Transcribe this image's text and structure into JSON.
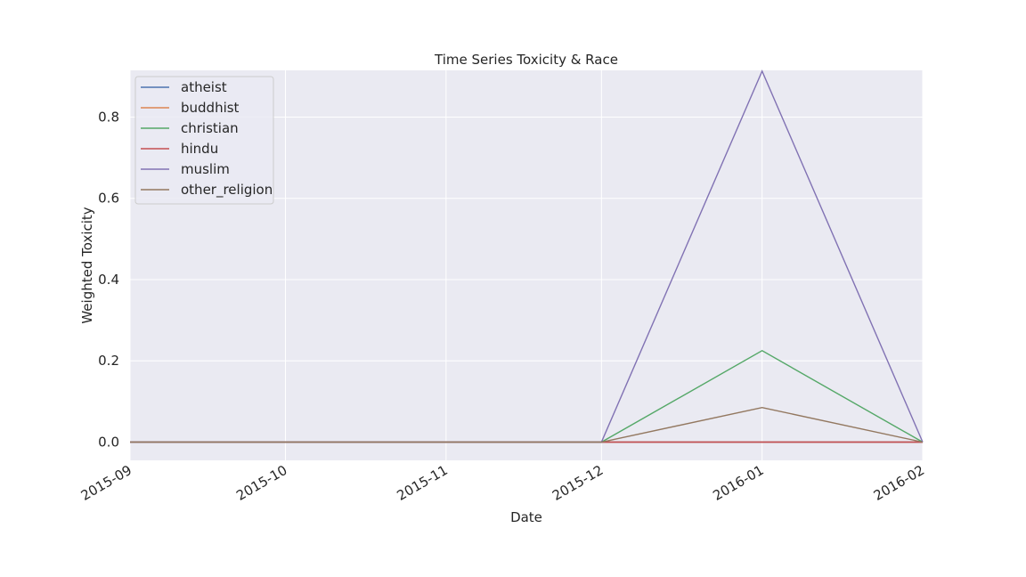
{
  "chart_data": {
    "type": "line",
    "title": "Time Series Toxicity & Race",
    "xlabel": "Date",
    "ylabel": "Weighted Toxicity",
    "x": [
      "2015-09-01",
      "2015-10-01",
      "2015-11-01",
      "2015-12-01",
      "2016-01-01",
      "2016-02-01"
    ],
    "xlim": [
      "2015-09-01",
      "2016-02-01"
    ],
    "x_ticks": [
      "2015-09",
      "2015-10",
      "2015-11",
      "2015-12",
      "2016-01",
      "2016-02"
    ],
    "ylim": [
      -0.045,
      0.915
    ],
    "y_ticks": [
      "0.0",
      "0.2",
      "0.4",
      "0.6",
      "0.8"
    ],
    "grid": true,
    "legend_position": "top-left",
    "series": [
      {
        "name": "atheist",
        "color": "#4c72b0",
        "values": [
          0,
          0,
          0,
          0,
          0,
          0
        ]
      },
      {
        "name": "buddhist",
        "color": "#dd8452",
        "values": [
          0,
          0,
          0,
          0,
          0,
          0
        ]
      },
      {
        "name": "christian",
        "color": "#55a868",
        "values": [
          0,
          0,
          0,
          0,
          0.225,
          0
        ]
      },
      {
        "name": "hindu",
        "color": "#c44e52",
        "values": [
          0,
          0,
          0,
          0,
          0,
          0
        ]
      },
      {
        "name": "muslim",
        "color": "#8172b3",
        "values": [
          0,
          0,
          0,
          0,
          0.913,
          0
        ]
      },
      {
        "name": "other_religion",
        "color": "#937860",
        "values": [
          0,
          0,
          0,
          0,
          0.085,
          0
        ]
      }
    ]
  }
}
